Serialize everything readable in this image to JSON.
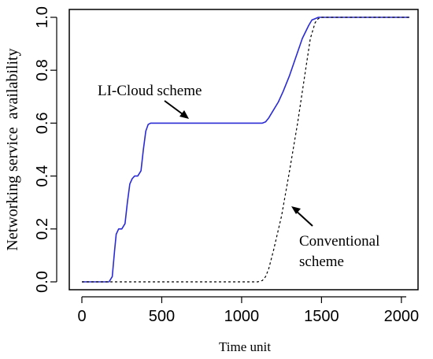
{
  "chart_data": {
    "type": "line",
    "xlabel": "Time unit",
    "ylabel": "Networking service  availability",
    "xlim": [
      0,
      2050
    ],
    "ylim": [
      0,
      1.0
    ],
    "xticks": [
      "0",
      "500",
      "1000",
      "1500",
      "2000"
    ],
    "yticks": [
      "0.0",
      "0.2",
      "0.4",
      "0.6",
      "0.8",
      "1.0"
    ],
    "grid": false,
    "legend": "none",
    "annotations": [
      {
        "text": "LI-Cloud scheme"
      },
      {
        "text": "Conventional",
        "text2": "scheme"
      }
    ],
    "series": [
      {
        "color": "#2b2bd6",
        "style": "solid",
        "x": [
          0,
          170,
          190,
          205,
          215,
          230,
          250,
          270,
          285,
          300,
          315,
          330,
          350,
          370,
          385,
          400,
          415,
          430,
          450,
          500,
          800,
          1100,
          1130,
          1150,
          1170,
          1200,
          1230,
          1260,
          1300,
          1340,
          1380,
          1420,
          1440,
          1460,
          1480,
          1500,
          1600,
          1800,
          2050
        ],
        "y": [
          0,
          0,
          0.02,
          0.12,
          0.18,
          0.2,
          0.2,
          0.22,
          0.3,
          0.37,
          0.39,
          0.4,
          0.4,
          0.42,
          0.5,
          0.57,
          0.595,
          0.6,
          0.6,
          0.6,
          0.6,
          0.6,
          0.6,
          0.605,
          0.62,
          0.65,
          0.68,
          0.72,
          0.78,
          0.85,
          0.92,
          0.97,
          0.99,
          0.995,
          1.0,
          1.0,
          1.0,
          1.0,
          1.0
        ]
      },
      {
        "color": "#000000",
        "style": "dashed",
        "x": [
          0,
          1100,
          1130,
          1150,
          1170,
          1200,
          1250,
          1300,
          1350,
          1400,
          1430,
          1460,
          1480,
          1500,
          1600,
          1800,
          2050
        ],
        "y": [
          0,
          0,
          0.005,
          0.02,
          0.05,
          0.12,
          0.25,
          0.42,
          0.6,
          0.8,
          0.92,
          0.98,
          0.995,
          1.0,
          1.0,
          1.0,
          1.0
        ]
      }
    ]
  }
}
